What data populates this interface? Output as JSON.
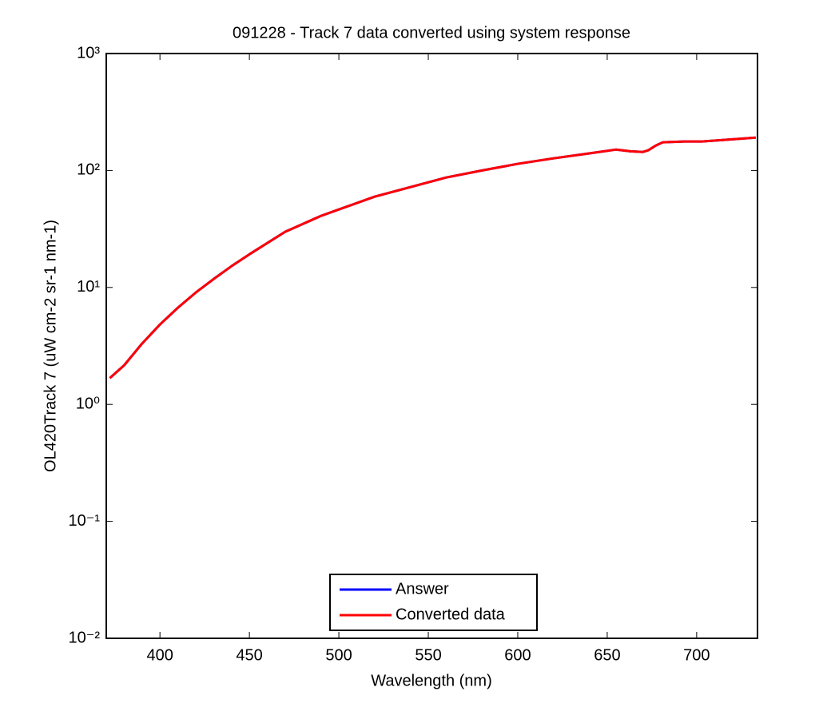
{
  "chart_data": {
    "type": "line",
    "title": "091228 - Track 7 data converted using system response",
    "x_label": "Wavelength (nm)",
    "y_label": "OL420Track 7 (uW cm-2 sr-1 nm-1)",
    "x": [
      372,
      380,
      390,
      400,
      410,
      420,
      430,
      440,
      450,
      470,
      490,
      500,
      520,
      540,
      560,
      580,
      600,
      620,
      640,
      655,
      663,
      670,
      673,
      677,
      681,
      693,
      703,
      733
    ],
    "series": [
      {
        "name": "Answer",
        "color": "#0000ff",
        "values": [
          1.68,
          2.16,
          3.31,
          4.82,
          6.7,
          9.04,
          11.8,
          15.2,
          19.2,
          29.9,
          40.9,
          46.4,
          59.7,
          72.1,
          87.1,
          100,
          114,
          127,
          140,
          151,
          146,
          144,
          149,
          163,
          174,
          177,
          177,
          191
        ]
      },
      {
        "name": "Converted data",
        "color": "#ff0000",
        "values": [
          1.68,
          2.16,
          3.31,
          4.82,
          6.7,
          9.04,
          11.8,
          15.2,
          19.2,
          29.9,
          40.9,
          46.4,
          59.7,
          72.1,
          87.1,
          100,
          114,
          127,
          140,
          151,
          146,
          144,
          149,
          163,
          174,
          177,
          177,
          191
        ]
      }
    ],
    "xlim": [
      370,
      734
    ],
    "xticks": [
      400,
      450,
      500,
      550,
      600,
      650,
      700
    ],
    "ylim": [
      0.01,
      1000
    ],
    "y_scale": "log",
    "yticks": [
      {
        "value": 0.01,
        "label": "10⁻²"
      },
      {
        "value": 0.1,
        "label": "10⁻¹"
      },
      {
        "value": 1,
        "label": "10⁰"
      },
      {
        "value": 10,
        "label": "10¹"
      },
      {
        "value": 100,
        "label": "10²"
      },
      {
        "value": 1000,
        "label": "10³"
      }
    ],
    "legend": "lower center"
  }
}
